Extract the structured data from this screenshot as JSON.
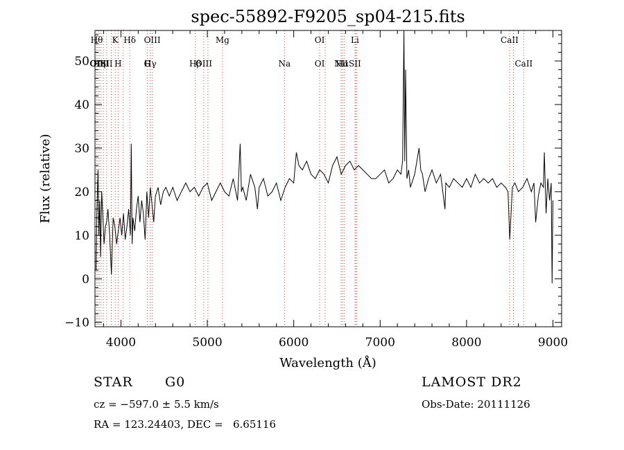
{
  "chart_data": {
    "type": "line",
    "title": "spec-55892-F9205_sp04-215.fits",
    "xlabel": "Wavelength (Å)",
    "ylabel": "Flux (relative)",
    "xlim": [
      3700,
      9100
    ],
    "ylim": [
      -11,
      57
    ],
    "xticks": [
      4000,
      5000,
      6000,
      7000,
      8000,
      9000
    ],
    "yticks": [
      -10,
      0,
      10,
      20,
      30,
      40,
      50
    ],
    "grid": false,
    "line_color": "#000000",
    "marker_color": "#d04040",
    "series": [
      {
        "name": "",
        "x": [
          3712,
          3722,
          3735,
          3745,
          3755,
          3765,
          3778,
          3790,
          3805,
          3820,
          3835,
          3850,
          3870,
          3890,
          3910,
          3930,
          3950,
          3970,
          3990,
          4010,
          4030,
          4050,
          4070,
          4090,
          4110,
          4120,
          4130,
          4140,
          4160,
          4180,
          4200,
          4220,
          4240,
          4260,
          4280,
          4300,
          4320,
          4340,
          4360,
          4380,
          4400,
          4430,
          4460,
          4490,
          4520,
          4560,
          4600,
          4650,
          4700,
          4750,
          4800,
          4850,
          4900,
          4950,
          5000,
          5050,
          5100,
          5150,
          5200,
          5250,
          5300,
          5350,
          5380,
          5395,
          5410,
          5450,
          5500,
          5550,
          5580,
          5600,
          5650,
          5700,
          5750,
          5800,
          5850,
          5900,
          5950,
          6000,
          6030,
          6060,
          6100,
          6150,
          6200,
          6250,
          6300,
          6350,
          6400,
          6450,
          6500,
          6550,
          6600,
          6650,
          6700,
          6750,
          6800,
          6850,
          6900,
          6950,
          7000,
          7050,
          7100,
          7150,
          7200,
          7240,
          7260,
          7275,
          7285,
          7295,
          7310,
          7330,
          7350,
          7400,
          7450,
          7470,
          7490,
          7520,
          7560,
          7600,
          7650,
          7700,
          7750,
          7760,
          7800,
          7850,
          7900,
          7950,
          8000,
          8050,
          8100,
          8150,
          8200,
          8250,
          8300,
          8350,
          8400,
          8450,
          8480,
          8500,
          8530,
          8560,
          8600,
          8650,
          8700,
          8750,
          8780,
          8800,
          8830,
          8860,
          8890,
          8900,
          8920,
          8940,
          8960,
          8980,
          8990,
          9000
        ],
        "y": [
          2,
          15,
          25,
          10,
          18,
          5,
          20,
          15,
          8,
          12,
          13,
          16,
          10,
          1,
          14,
          12,
          8,
          11,
          14,
          10,
          15,
          9,
          12,
          16,
          10,
          31,
          8,
          14,
          11,
          16,
          19,
          13,
          18,
          15,
          9,
          20,
          14,
          21,
          17,
          13,
          19,
          21,
          17,
          20,
          21,
          19,
          21,
          18,
          20,
          22,
          20,
          21,
          19,
          21,
          22,
          18,
          20,
          22,
          20,
          19,
          23,
          18,
          31,
          20,
          21,
          18,
          24,
          21,
          16,
          21,
          23,
          19,
          20,
          22,
          18,
          21,
          23,
          22,
          29,
          26,
          25,
          27,
          24,
          23,
          25,
          24,
          22,
          26,
          28,
          24,
          26,
          27,
          25,
          26,
          25,
          24,
          23,
          23,
          24,
          25,
          22,
          23,
          25,
          24,
          27,
          57,
          27,
          48,
          23,
          25,
          21,
          24,
          30,
          25,
          24,
          20,
          23,
          25,
          22,
          24,
          16,
          22,
          21,
          23,
          22,
          21,
          23,
          21,
          24,
          22,
          23,
          22,
          23,
          21,
          22,
          21,
          20,
          9,
          21,
          22,
          20,
          21,
          23,
          20,
          22,
          13,
          19,
          22,
          21,
          29,
          15,
          23,
          18,
          22,
          -1,
          18
        ],
        "markers": [
          {
            "x": 3720,
            "top": "Hθ",
            "bottom": "OII"
          },
          {
            "x": 3734,
            "top": "",
            "bottom": "OIII"
          },
          {
            "x": 3750,
            "top": "",
            "bottom": "Hη"
          },
          {
            "x": 3770,
            "top": "",
            "bottom": "HeI"
          },
          {
            "x": 3797,
            "top": "",
            "bottom": ""
          },
          {
            "x": 3835,
            "top": "",
            "bottom": "SII"
          },
          {
            "x": 3889,
            "top": "",
            "bottom": ""
          },
          {
            "x": 3934,
            "top": "K",
            "bottom": ""
          },
          {
            "x": 3968,
            "top": "",
            "bottom": "H"
          },
          {
            "x": 4026,
            "top": "",
            "bottom": ""
          },
          {
            "x": 4102,
            "top": "Hδ",
            "bottom": ""
          },
          {
            "x": 4304,
            "top": "",
            "bottom": "G"
          },
          {
            "x": 4340,
            "top": "",
            "bottom": "Hγ"
          },
          {
            "x": 4363,
            "top": "OIII",
            "bottom": ""
          },
          {
            "x": 4861,
            "top": "",
            "bottom": "Hβ"
          },
          {
            "x": 4959,
            "top": "",
            "bottom": "OIII"
          },
          {
            "x": 5007,
            "top": "",
            "bottom": ""
          },
          {
            "x": 5175,
            "top": "Mg",
            "bottom": ""
          },
          {
            "x": 5893,
            "top": "",
            "bottom": "Na"
          },
          {
            "x": 6300,
            "top": "OI",
            "bottom": "OI"
          },
          {
            "x": 6364,
            "top": "",
            "bottom": ""
          },
          {
            "x": 6548,
            "top": "",
            "bottom": "NII"
          },
          {
            "x": 6563,
            "top": "",
            "bottom": "Hα"
          },
          {
            "x": 6583,
            "top": "",
            "bottom": ""
          },
          {
            "x": 6708,
            "top": "Li",
            "bottom": "SII"
          },
          {
            "x": 6717,
            "top": "",
            "bottom": ""
          },
          {
            "x": 6731,
            "top": "",
            "bottom": ""
          },
          {
            "x": 8498,
            "top": "CaII",
            "bottom": ""
          },
          {
            "x": 8542,
            "top": "",
            "bottom": ""
          },
          {
            "x": 8662,
            "top": "",
            "bottom": "CaII"
          }
        ]
      }
    ]
  },
  "footer": {
    "class_label": "STAR",
    "subclass": "G0",
    "survey": "LAMOST DR2",
    "cz": "cz = −597.0 ± 5.5 km/s",
    "obs_date": "Obs-Date: 20111126",
    "radec": "RA = 123.24403, DEC =   6.65116"
  }
}
